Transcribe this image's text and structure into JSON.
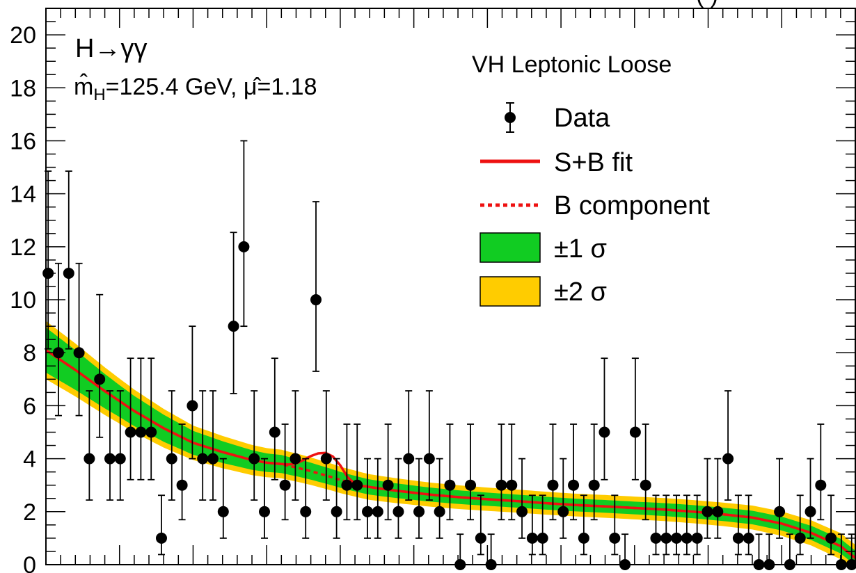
{
  "chart_data": {
    "type": "scatter",
    "title": "H→γγ",
    "fit_result": {
      "mH_label": "m̂",
      "mH_sub": "H",
      "mH_text": "=125.4 GeV, ",
      "mu_label": "μ̂",
      "mu_text": "=1.18"
    },
    "category": "VH Leptonic Loose",
    "corner_text": "(  )",
    "xlabel": "",
    "ylabel": "",
    "xlim": [
      105,
      160
    ],
    "ylim": [
      0,
      21
    ],
    "yticks": [
      0,
      2,
      4,
      6,
      8,
      10,
      12,
      14,
      16,
      18,
      20
    ],
    "grid": false,
    "legend_position": "top-right",
    "legend": [
      {
        "key": "data",
        "label": "Data"
      },
      {
        "key": "sb",
        "label": "S+B fit"
      },
      {
        "key": "b",
        "label": "B component"
      },
      {
        "key": "band1",
        "label": "±1 σ"
      },
      {
        "key": "band2",
        "label": "±2 σ"
      }
    ],
    "colors": {
      "data": "#000000",
      "fit": "#ee1111",
      "band1": "#11cc22",
      "band2": "#ffcc00"
    },
    "data_points": {
      "x": [
        105.15,
        105.85,
        106.55,
        107.25,
        107.95,
        108.65,
        109.35,
        110.05,
        110.75,
        111.45,
        112.15,
        112.85,
        113.55,
        114.25,
        114.95,
        115.65,
        116.35,
        117.05,
        117.75,
        118.45,
        119.15,
        119.85,
        120.55,
        121.25,
        121.95,
        122.65,
        123.35,
        124.05,
        124.75,
        125.45,
        126.15,
        126.85,
        127.55,
        128.25,
        128.95,
        129.65,
        130.35,
        131.05,
        131.75,
        132.45,
        133.15,
        133.85,
        134.55,
        135.25,
        135.95,
        136.65,
        137.35,
        138.05,
        138.75,
        139.45,
        140.15,
        140.85,
        141.55,
        142.25,
        142.95,
        143.65,
        144.35,
        145.05,
        145.75,
        146.45,
        147.15,
        147.85,
        148.55,
        149.25,
        149.95,
        150.65,
        151.35,
        152.05,
        152.75,
        153.45,
        154.15,
        154.85,
        155.55,
        156.25,
        156.95,
        157.65,
        158.35,
        159.05,
        159.75
      ],
      "y": [
        11,
        8,
        11,
        8,
        4,
        7,
        4,
        4,
        5,
        5,
        5,
        1,
        4,
        3,
        6,
        4,
        4,
        2,
        9,
        12,
        4,
        2,
        5,
        3,
        4,
        2,
        10,
        4,
        2,
        3,
        3,
        2,
        2,
        3,
        2,
        4,
        2,
        4,
        2,
        3,
        0,
        3,
        1,
        0,
        3,
        3,
        2,
        1,
        1,
        3,
        2,
        3,
        1,
        3,
        5,
        1,
        0,
        5,
        3,
        1,
        1,
        1,
        1,
        1,
        2,
        2,
        4,
        1,
        1,
        0,
        0,
        2,
        0,
        1,
        2,
        3,
        1,
        0,
        0
      ]
    },
    "fit_curve": {
      "x": [
        105,
        107,
        109,
        111,
        113,
        115,
        117,
        119,
        120,
        121,
        121.5,
        122,
        122.5,
        123,
        123.5,
        124,
        124.5,
        125,
        125.5,
        126,
        126.5,
        127,
        128,
        129,
        131,
        133,
        135,
        137,
        139,
        141,
        143,
        145,
        147,
        149,
        151,
        153,
        155,
        157,
        159,
        160
      ],
      "sb": [
        8.1,
        7.35,
        6.55,
        5.8,
        5.15,
        4.6,
        4.25,
        3.95,
        3.85,
        3.8,
        3.78,
        3.82,
        3.95,
        4.1,
        4.2,
        4.22,
        4.08,
        3.75,
        3.3,
        3.05,
        2.97,
        2.93,
        2.85,
        2.78,
        2.65,
        2.55,
        2.47,
        2.4,
        2.32,
        2.25,
        2.2,
        2.14,
        2.08,
        2.0,
        1.9,
        1.78,
        1.55,
        1.2,
        0.7,
        0.25
      ],
      "b": [
        8.1,
        7.35,
        6.55,
        5.8,
        5.15,
        4.6,
        4.25,
        3.95,
        3.85,
        3.8,
        3.73,
        3.67,
        3.6,
        3.53,
        3.45,
        3.37,
        3.29,
        3.2,
        3.13,
        3.06,
        2.99,
        2.93,
        2.85,
        2.78,
        2.65,
        2.55,
        2.47,
        2.4,
        2.32,
        2.25,
        2.2,
        2.14,
        2.08,
        2.0,
        1.9,
        1.78,
        1.55,
        1.2,
        0.7,
        0.25
      ]
    },
    "band_halfwidth": {
      "x": [
        105,
        110,
        115,
        120,
        125,
        130,
        135,
        140,
        145,
        150,
        155,
        160
      ],
      "sigma1": [
        0.85,
        0.6,
        0.45,
        0.35,
        0.3,
        0.27,
        0.25,
        0.24,
        0.24,
        0.25,
        0.26,
        0.28
      ],
      "sigma2": [
        1.1,
        0.85,
        0.65,
        0.55,
        0.5,
        0.46,
        0.44,
        0.43,
        0.43,
        0.44,
        0.46,
        0.5
      ]
    }
  }
}
